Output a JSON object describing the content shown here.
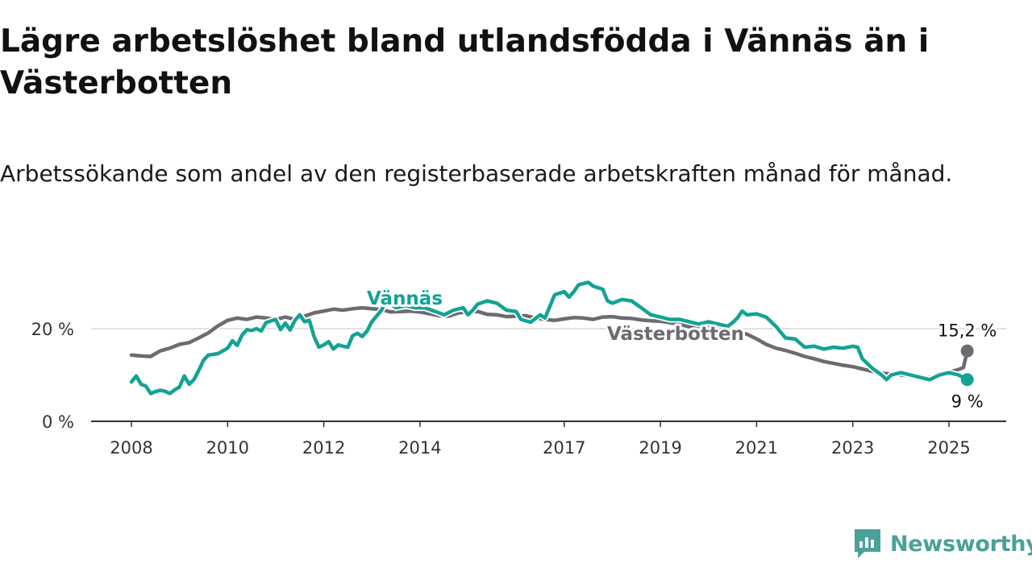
{
  "header": {
    "title": "Lägre arbetslöshet bland utlandsfödda i Vännäs än i Västerbotten",
    "subtitle": "Arbetssökande som andel av den registerbaserade arbetskraften månad för månad."
  },
  "brand": {
    "name": "Newsworthy",
    "color": "#4aa198"
  },
  "chart_data": {
    "type": "line",
    "ylim": [
      0,
      30
    ],
    "xlim": [
      2007.7,
      2026.2
    ],
    "y_ticks": [
      {
        "value": 0,
        "label": "0 %"
      },
      {
        "value": 20,
        "label": "20 %"
      }
    ],
    "x_ticks": [
      {
        "value": 2008,
        "label": "2008"
      },
      {
        "value": 2010,
        "label": "2010"
      },
      {
        "value": 2012,
        "label": "2012"
      },
      {
        "value": 2014,
        "label": "2014"
      },
      {
        "value": 2017,
        "label": "2017"
      },
      {
        "value": 2019,
        "label": "2019"
      },
      {
        "value": 2021,
        "label": "2021"
      },
      {
        "value": 2023,
        "label": "2023"
      },
      {
        "value": 2025,
        "label": "2025"
      }
    ],
    "grid": true,
    "legend": "direct labels on lines",
    "series": [
      {
        "name": "Västerbotten",
        "color": "#6e6a71",
        "end_label": "15,2 %",
        "points": [
          [
            2008.0,
            14.3
          ],
          [
            2008.2,
            14.1
          ],
          [
            2008.4,
            14.0
          ],
          [
            2008.6,
            15.2
          ],
          [
            2008.8,
            15.8
          ],
          [
            2009.0,
            16.6
          ],
          [
            2009.2,
            17.0
          ],
          [
            2009.4,
            18.0
          ],
          [
            2009.6,
            19.1
          ],
          [
            2009.8,
            20.6
          ],
          [
            2010.0,
            21.8
          ],
          [
            2010.2,
            22.3
          ],
          [
            2010.4,
            22.0
          ],
          [
            2010.6,
            22.5
          ],
          [
            2010.8,
            22.3
          ],
          [
            2011.0,
            22.0
          ],
          [
            2011.2,
            22.5
          ],
          [
            2011.4,
            22.0
          ],
          [
            2011.6,
            22.7
          ],
          [
            2011.8,
            23.4
          ],
          [
            2012.0,
            23.8
          ],
          [
            2012.2,
            24.2
          ],
          [
            2012.4,
            24.0
          ],
          [
            2012.6,
            24.3
          ],
          [
            2012.8,
            24.5
          ],
          [
            2013.0,
            24.3
          ],
          [
            2013.2,
            24.1
          ],
          [
            2013.4,
            23.6
          ],
          [
            2013.6,
            23.7
          ],
          [
            2013.8,
            23.8
          ],
          [
            2014.0,
            23.6
          ],
          [
            2014.2,
            23.2
          ],
          [
            2014.4,
            22.8
          ],
          [
            2014.6,
            22.7
          ],
          [
            2014.8,
            23.4
          ],
          [
            2015.0,
            23.6
          ],
          [
            2015.2,
            23.7
          ],
          [
            2015.4,
            23.1
          ],
          [
            2015.6,
            23.0
          ],
          [
            2015.8,
            22.6
          ],
          [
            2016.0,
            22.7
          ],
          [
            2016.2,
            22.8
          ],
          [
            2016.4,
            22.3
          ],
          [
            2016.6,
            22.0
          ],
          [
            2016.8,
            21.8
          ],
          [
            2017.0,
            22.1
          ],
          [
            2017.2,
            22.4
          ],
          [
            2017.4,
            22.3
          ],
          [
            2017.6,
            22.0
          ],
          [
            2017.8,
            22.5
          ],
          [
            2018.0,
            22.6
          ],
          [
            2018.2,
            22.3
          ],
          [
            2018.4,
            22.2
          ],
          [
            2018.6,
            21.9
          ],
          [
            2018.8,
            21.7
          ],
          [
            2019.0,
            21.6
          ],
          [
            2019.2,
            21.3
          ],
          [
            2019.4,
            20.9
          ],
          [
            2019.6,
            20.4
          ],
          [
            2019.8,
            20.1
          ],
          [
            2020.0,
            20.3
          ],
          [
            2020.2,
            20.0
          ],
          [
            2020.4,
            19.8
          ],
          [
            2020.6,
            19.4
          ],
          [
            2020.8,
            18.8
          ],
          [
            2021.0,
            17.8
          ],
          [
            2021.2,
            16.6
          ],
          [
            2021.4,
            15.8
          ],
          [
            2021.6,
            15.3
          ],
          [
            2021.8,
            14.7
          ],
          [
            2022.0,
            14.0
          ],
          [
            2022.2,
            13.5
          ],
          [
            2022.4,
            12.9
          ],
          [
            2022.6,
            12.5
          ],
          [
            2022.8,
            12.1
          ],
          [
            2023.0,
            11.8
          ],
          [
            2023.2,
            11.3
          ],
          [
            2023.4,
            10.8
          ],
          [
            2023.6,
            10.4
          ],
          [
            2023.8,
            10.2
          ],
          [
            2024.0,
            10.0
          ],
          [
            2024.2,
            9.8
          ],
          [
            2024.4,
            9.5
          ],
          [
            2024.6,
            9.4
          ],
          [
            2024.8,
            9.7
          ],
          [
            2025.0,
            10.6
          ],
          [
            2025.2,
            11.2
          ],
          [
            2025.3,
            11.6
          ],
          [
            2025.38,
            15.2
          ]
        ]
      },
      {
        "name": "Vännäs",
        "color": "#12a394",
        "end_label": "9 %",
        "points": [
          [
            2008.0,
            8.5
          ],
          [
            2008.1,
            9.8
          ],
          [
            2008.2,
            8.0
          ],
          [
            2008.3,
            7.6
          ],
          [
            2008.4,
            6.0
          ],
          [
            2008.5,
            6.4
          ],
          [
            2008.6,
            6.7
          ],
          [
            2008.7,
            6.5
          ],
          [
            2008.8,
            6.0
          ],
          [
            2008.9,
            6.8
          ],
          [
            2009.0,
            7.4
          ],
          [
            2009.1,
            9.8
          ],
          [
            2009.2,
            8.0
          ],
          [
            2009.3,
            9.0
          ],
          [
            2009.4,
            11.0
          ],
          [
            2009.5,
            13.2
          ],
          [
            2009.6,
            14.3
          ],
          [
            2009.8,
            14.6
          ],
          [
            2010.0,
            15.8
          ],
          [
            2010.1,
            17.4
          ],
          [
            2010.2,
            16.4
          ],
          [
            2010.3,
            18.6
          ],
          [
            2010.4,
            19.8
          ],
          [
            2010.5,
            19.6
          ],
          [
            2010.6,
            20.0
          ],
          [
            2010.7,
            19.5
          ],
          [
            2010.8,
            21.3
          ],
          [
            2011.0,
            22.0
          ],
          [
            2011.1,
            19.8
          ],
          [
            2011.2,
            21.2
          ],
          [
            2011.3,
            19.7
          ],
          [
            2011.4,
            21.8
          ],
          [
            2011.5,
            23.0
          ],
          [
            2011.6,
            21.5
          ],
          [
            2011.7,
            21.8
          ],
          [
            2011.8,
            18.2
          ],
          [
            2011.9,
            16.0
          ],
          [
            2012.0,
            16.5
          ],
          [
            2012.1,
            17.2
          ],
          [
            2012.2,
            15.6
          ],
          [
            2012.3,
            16.5
          ],
          [
            2012.4,
            16.2
          ],
          [
            2012.5,
            16.0
          ],
          [
            2012.6,
            18.5
          ],
          [
            2012.7,
            19.0
          ],
          [
            2012.8,
            18.3
          ],
          [
            2012.9,
            19.5
          ],
          [
            2013.0,
            21.5
          ],
          [
            2013.2,
            24.0
          ],
          [
            2013.3,
            26.0
          ],
          [
            2013.5,
            24.5
          ],
          [
            2013.7,
            25.0
          ],
          [
            2013.9,
            24.5
          ],
          [
            2014.1,
            24.5
          ],
          [
            2014.3,
            23.8
          ],
          [
            2014.5,
            23.0
          ],
          [
            2014.7,
            24.0
          ],
          [
            2014.9,
            24.5
          ],
          [
            2015.0,
            23.0
          ],
          [
            2015.1,
            24.0
          ],
          [
            2015.2,
            25.3
          ],
          [
            2015.4,
            26.0
          ],
          [
            2015.6,
            25.5
          ],
          [
            2015.8,
            24.0
          ],
          [
            2016.0,
            23.7
          ],
          [
            2016.1,
            22.0
          ],
          [
            2016.3,
            21.4
          ],
          [
            2016.5,
            23.0
          ],
          [
            2016.6,
            22.3
          ],
          [
            2016.8,
            27.3
          ],
          [
            2017.0,
            28.0
          ],
          [
            2017.1,
            26.8
          ],
          [
            2017.2,
            28.0
          ],
          [
            2017.3,
            29.5
          ],
          [
            2017.5,
            30.0
          ],
          [
            2017.6,
            29.2
          ],
          [
            2017.8,
            28.5
          ],
          [
            2017.9,
            26.0
          ],
          [
            2018.0,
            25.5
          ],
          [
            2018.2,
            26.3
          ],
          [
            2018.4,
            26.0
          ],
          [
            2018.6,
            24.5
          ],
          [
            2018.8,
            23.0
          ],
          [
            2019.0,
            22.5
          ],
          [
            2019.2,
            22.0
          ],
          [
            2019.4,
            22.0
          ],
          [
            2019.6,
            21.5
          ],
          [
            2019.8,
            21.0
          ],
          [
            2020.0,
            21.5
          ],
          [
            2020.2,
            21.0
          ],
          [
            2020.4,
            20.5
          ],
          [
            2020.5,
            21.3
          ],
          [
            2020.6,
            22.3
          ],
          [
            2020.7,
            23.8
          ],
          [
            2020.8,
            23.0
          ],
          [
            2021.0,
            23.2
          ],
          [
            2021.2,
            22.5
          ],
          [
            2021.4,
            20.5
          ],
          [
            2021.6,
            18.0
          ],
          [
            2021.8,
            17.8
          ],
          [
            2022.0,
            16.0
          ],
          [
            2022.2,
            16.2
          ],
          [
            2022.4,
            15.6
          ],
          [
            2022.6,
            16.0
          ],
          [
            2022.8,
            15.8
          ],
          [
            2023.0,
            16.2
          ],
          [
            2023.1,
            16.0
          ],
          [
            2023.2,
            13.5
          ],
          [
            2023.4,
            11.5
          ],
          [
            2023.6,
            10.0
          ],
          [
            2023.7,
            9.0
          ],
          [
            2023.8,
            10.0
          ],
          [
            2024.0,
            10.5
          ],
          [
            2024.2,
            10.0
          ],
          [
            2024.4,
            9.5
          ],
          [
            2024.6,
            9.0
          ],
          [
            2024.8,
            10.0
          ],
          [
            2025.0,
            10.5
          ],
          [
            2025.2,
            10.0
          ],
          [
            2025.38,
            9.0
          ]
        ]
      }
    ]
  }
}
